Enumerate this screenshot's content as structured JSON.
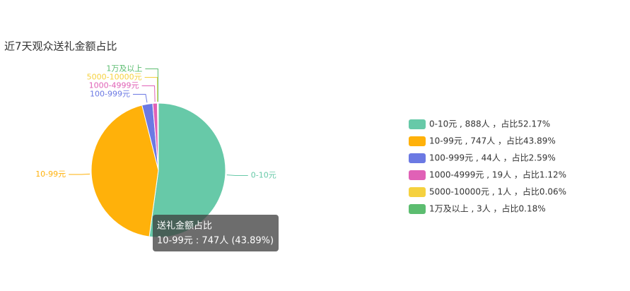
{
  "chart_data": {
    "type": "pie",
    "title": "近7天观众送礼金额占比",
    "categories": [
      "0-10元",
      "10-99元",
      "100-999元",
      "1000-4999元",
      "5000-10000元",
      "1万及以上"
    ],
    "values": [
      888,
      747,
      44,
      19,
      1,
      3
    ],
    "colors": [
      "#67c9a8",
      "#ffb10a",
      "#6b79e3",
      "#e061b6",
      "#f5d13f",
      "#5cbd70"
    ],
    "legend_labels": [
      "0-10元 , 888人 ，占比52.17%",
      "10-99元 , 747人 ，占比43.89%",
      "100-999元 , 44人 ，占比2.59%",
      "1000-4999元 , 19人 ，占比1.12%",
      "5000-10000元 , 1人 ，占比0.06%",
      "1万及以上 , 3人 ，占比0.18%"
    ],
    "tooltip": {
      "title": "送礼金额占比",
      "text": "10-99元 : 747人 (43.89%)"
    }
  }
}
